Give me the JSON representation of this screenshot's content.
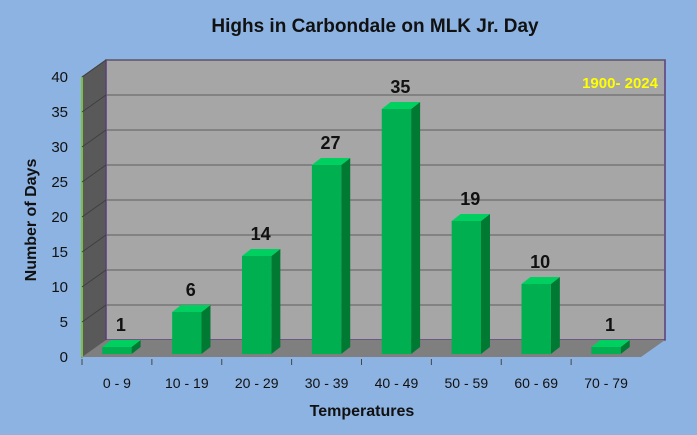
{
  "chart_data": {
    "type": "bar",
    "title": "Highs in Carbondale on MLK Jr. Day",
    "annotation": "1900- 2024",
    "xlabel": "Temperatures",
    "ylabel": "Number of Days",
    "categories": [
      "0 - 9",
      "10 - 19",
      "20 - 29",
      "30 - 39",
      "40 - 49",
      "50 - 59",
      "60 - 69",
      "70 - 79"
    ],
    "values": [
      1,
      6,
      14,
      27,
      35,
      19,
      10,
      1
    ],
    "ylim": [
      0,
      40
    ],
    "yticks": [
      0,
      5,
      10,
      15,
      20,
      25,
      30,
      35,
      40
    ],
    "grid": true,
    "legend": "none",
    "colors": {
      "bar_front": "#00b050",
      "bar_side": "#007a33",
      "bar_top": "#00d060",
      "plot_back": "#a6a6a6",
      "floor": "#7f7f7f",
      "side_wall": "#595959",
      "wall_border": "#5b3d7a",
      "background": "#8db3e2",
      "annotation": "#ffff00"
    }
  }
}
